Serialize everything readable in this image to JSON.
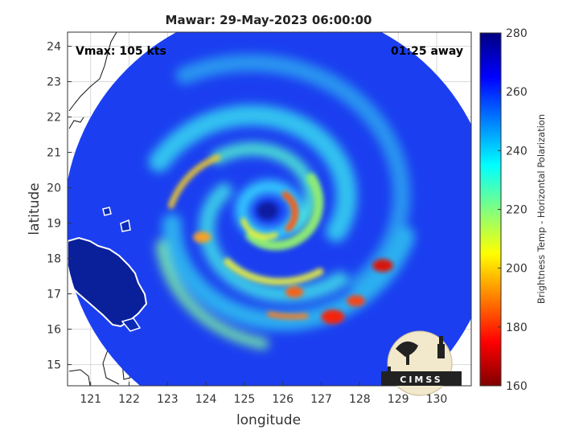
{
  "chart_data": {
    "type": "heatmap",
    "title": "Mawar: 29-May-2023 06:00:00",
    "xlabel": "longitude",
    "ylabel": "latitude",
    "xlim": [
      120.4,
      130.9
    ],
    "ylim": [
      14.4,
      24.4
    ],
    "x_ticks": [
      121,
      122,
      123,
      124,
      125,
      126,
      127,
      128,
      129,
      130
    ],
    "y_ticks": [
      15,
      16,
      17,
      18,
      19,
      20,
      21,
      22,
      23,
      24
    ],
    "grid": true,
    "colorbar": {
      "label": "Brightness Temp - Horizontal Polarization",
      "min": 160,
      "max": 280,
      "ticks": [
        160,
        180,
        200,
        220,
        240,
        260,
        280
      ],
      "colormap": "jet"
    },
    "storm_center": {
      "lon": 125.6,
      "lat": 19.35
    },
    "scan_radius_deg": 5.6,
    "annotations": {
      "left": "Vmax: 105 kts",
      "right": "01:25 away"
    }
  },
  "logo": {
    "text": "CIMSS"
  }
}
